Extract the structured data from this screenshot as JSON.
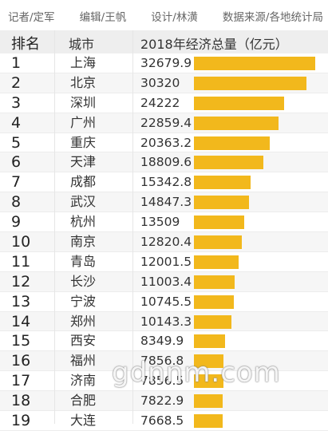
{
  "credits": {
    "reporter": "记者/定军",
    "editor": "编辑/王帆",
    "design": "设计/林潢",
    "source": "数据来源/各地统计局"
  },
  "header": {
    "rank": "排名",
    "city": "城市",
    "value": "2018年经济总量（亿元）"
  },
  "watermark": "gdnnm.com",
  "colors": {
    "bar": "#f2b81c"
  },
  "chart_data": {
    "type": "bar",
    "orientation": "horizontal",
    "title": "",
    "xlabel": "",
    "ylabel": "2018年经济总量（亿元）",
    "xlim": [
      0,
      32679.9
    ],
    "categories": [
      "上海",
      "北京",
      "深圳",
      "广州",
      "重庆",
      "天津",
      "成都",
      "武汉",
      "杭州",
      "南京",
      "青岛",
      "长沙",
      "宁波",
      "郑州",
      "西安",
      "福州",
      "济南",
      "合肥",
      "大连"
    ],
    "ranks": [
      "1",
      "2",
      "3",
      "4",
      "5",
      "6",
      "7",
      "8",
      "9",
      "10",
      "11",
      "12",
      "13",
      "14",
      "15",
      "16",
      "17",
      "18",
      "19"
    ],
    "value_labels": [
      "32679.9",
      "30320",
      "24222",
      "22859.4",
      "20363.2",
      "18809.6",
      "15342.8",
      "14847.3",
      "13509",
      "12820.4",
      "12001.5",
      "11003.4",
      "10745.5",
      "10143.3",
      "8349.9",
      "7856.8",
      "7856.5",
      "7822.9",
      "7668.5"
    ],
    "values": [
      32679.9,
      30320,
      24222,
      22859.4,
      20363.2,
      18809.6,
      15342.8,
      14847.3,
      13509,
      12820.4,
      12001.5,
      11003.4,
      10745.5,
      10143.3,
      8349.9,
      7856.8,
      7856.5,
      7822.9,
      7668.5
    ]
  }
}
